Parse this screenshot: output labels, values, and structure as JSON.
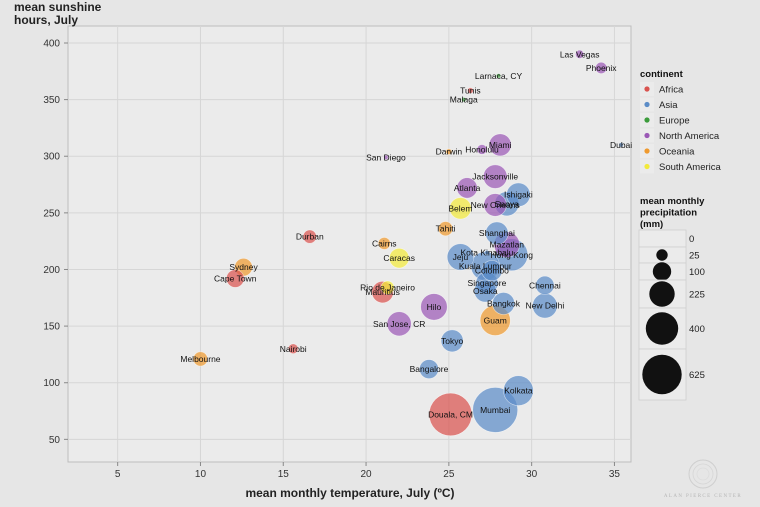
{
  "chart_data": {
    "type": "scatter",
    "xlabel": "mean monthly temperature, July (ºC)",
    "ylabel": "mean sunshine hours, July",
    "xlim": [
      2,
      36
    ],
    "ylim": [
      30,
      415
    ],
    "xticks": [
      "5",
      "10",
      "15",
      "20",
      "25",
      "30",
      "35"
    ],
    "yticks": [
      "50",
      "100",
      "150",
      "200",
      "250",
      "300",
      "350",
      "400"
    ],
    "grid": true,
    "legend_position": "right",
    "continent_legend": {
      "title": "continent",
      "entries": [
        {
          "name": "Africa",
          "color": "#d9534f"
        },
        {
          "name": "Asia",
          "color": "#5b8cc7"
        },
        {
          "name": "Europe",
          "color": "#3c9c3c"
        },
        {
          "name": "North America",
          "color": "#9b59b6"
        },
        {
          "name": "Oceania",
          "color": "#ef9a2f"
        },
        {
          "name": "South America",
          "color": "#f2ea3c"
        }
      ]
    },
    "size_legend": {
      "title": [
        "mean monthly",
        "precipitation",
        "(mm)"
      ],
      "values": [
        "0",
        "25",
        "100",
        "225",
        "400",
        "625"
      ]
    },
    "points": [
      {
        "name": "Las Vegas",
        "x": 32.9,
        "y": 390,
        "precip": 8,
        "continent": "North America"
      },
      {
        "name": "Larnaca, CY",
        "x": 28.0,
        "y": 371,
        "precip": 0,
        "continent": "Europe"
      },
      {
        "name": "Phoenix",
        "x": 34.2,
        "y": 378,
        "precip": 25,
        "continent": "North America"
      },
      {
        "name": "Tunis",
        "x": 26.3,
        "y": 358,
        "precip": 1,
        "continent": "Africa"
      },
      {
        "name": "Malaga",
        "x": 25.9,
        "y": 350,
        "precip": 0,
        "continent": "Europe"
      },
      {
        "name": "Dubai",
        "x": 35.4,
        "y": 310,
        "precip": 0,
        "continent": "Asia"
      },
      {
        "name": "Miami",
        "x": 28.1,
        "y": 310,
        "precip": 160,
        "continent": "North America"
      },
      {
        "name": "Darwin",
        "x": 25.0,
        "y": 304,
        "precip": 1,
        "continent": "Oceania"
      },
      {
        "name": "San Diego",
        "x": 21.2,
        "y": 299,
        "precip": 0,
        "continent": "North America"
      },
      {
        "name": "Honolulu",
        "x": 27.0,
        "y": 306,
        "precip": 15,
        "continent": "North America"
      },
      {
        "name": "Jacksonville",
        "x": 27.8,
        "y": 282,
        "precip": 190,
        "continent": "North America"
      },
      {
        "name": "Atlanta",
        "x": 26.1,
        "y": 272,
        "precip": 130,
        "continent": "North America"
      },
      {
        "name": "Ishigaki",
        "x": 29.2,
        "y": 266,
        "precip": 190,
        "continent": "Asia"
      },
      {
        "name": "Sanya",
        "x": 28.5,
        "y": 258,
        "precip": 200,
        "continent": "Asia"
      },
      {
        "name": "Belem",
        "x": 25.7,
        "y": 254,
        "precip": 150,
        "continent": "South America"
      },
      {
        "name": "New Orleans",
        "x": 27.8,
        "y": 257,
        "precip": 170,
        "continent": "North America"
      },
      {
        "name": "Tahiti",
        "x": 24.8,
        "y": 236,
        "precip": 50,
        "continent": "Oceania"
      },
      {
        "name": "Shanghai",
        "x": 27.9,
        "y": 232,
        "precip": 170,
        "continent": "Asia"
      },
      {
        "name": "Durban",
        "x": 16.6,
        "y": 229,
        "precip": 40,
        "continent": "Africa"
      },
      {
        "name": "Cairns",
        "x": 21.1,
        "y": 223,
        "precip": 30,
        "continent": "Oceania"
      },
      {
        "name": "Mazatlan",
        "x": 28.5,
        "y": 222,
        "precip": 230,
        "continent": "North America"
      },
      {
        "name": "Kota Kinabalu",
        "x": 27.3,
        "y": 215,
        "precip": 0,
        "continent": "Asia"
      },
      {
        "name": "Jeju",
        "x": 25.7,
        "y": 211,
        "precip": 250,
        "continent": "Asia"
      },
      {
        "name": "Hong Kong",
        "x": 28.8,
        "y": 213,
        "precip": 390,
        "continent": "Asia"
      },
      {
        "name": "Caracas",
        "x": 22.0,
        "y": 210,
        "precip": 120,
        "continent": "South America"
      },
      {
        "name": "Sydney",
        "x": 12.6,
        "y": 202,
        "precip": 90,
        "continent": "Oceania"
      },
      {
        "name": "Kuala Lumpur",
        "x": 27.2,
        "y": 203,
        "precip": 300,
        "continent": "Asia"
      },
      {
        "name": "Colombo",
        "x": 27.6,
        "y": 199,
        "precip": 130,
        "continent": "Asia"
      },
      {
        "name": "Cape Town",
        "x": 12.1,
        "y": 192,
        "precip": 90,
        "continent": "Africa"
      },
      {
        "name": "Singapore",
        "x": 27.3,
        "y": 188,
        "precip": 160,
        "continent": "Asia"
      },
      {
        "name": "Chennai",
        "x": 30.8,
        "y": 186,
        "precip": 100,
        "continent": "Asia"
      },
      {
        "name": "Rio de Janeiro",
        "x": 21.3,
        "y": 184,
        "precip": 40,
        "continent": "South America"
      },
      {
        "name": "Mauritius",
        "x": 21.0,
        "y": 180,
        "precip": 150,
        "continent": "Africa"
      },
      {
        "name": "Osaka",
        "x": 27.2,
        "y": 181,
        "precip": 160,
        "continent": "Asia"
      },
      {
        "name": "Bangkok",
        "x": 28.3,
        "y": 170,
        "precip": 160,
        "continent": "Asia"
      },
      {
        "name": "New Delhi",
        "x": 30.8,
        "y": 168,
        "precip": 210,
        "continent": "Asia"
      },
      {
        "name": "Hilo",
        "x": 24.1,
        "y": 167,
        "precip": 250,
        "continent": "North America"
      },
      {
        "name": "Guam",
        "x": 27.8,
        "y": 155,
        "precip": 340,
        "continent": "Oceania"
      },
      {
        "name": "San Jose, CR",
        "x": 22.0,
        "y": 152,
        "precip": 200,
        "continent": "North America"
      },
      {
        "name": "Tokyo",
        "x": 25.2,
        "y": 137,
        "precip": 160,
        "continent": "Asia"
      },
      {
        "name": "Nairobi",
        "x": 15.6,
        "y": 130,
        "precip": 15,
        "continent": "Africa"
      },
      {
        "name": "Melbourne",
        "x": 10.0,
        "y": 121,
        "precip": 50,
        "continent": "Oceania"
      },
      {
        "name": "Bangalore",
        "x": 23.8,
        "y": 112,
        "precip": 110,
        "continent": "Asia"
      },
      {
        "name": "Kolkata",
        "x": 29.2,
        "y": 93,
        "precip": 330,
        "continent": "Asia"
      },
      {
        "name": "Douala, CM",
        "x": 25.1,
        "y": 72,
        "precip": 750,
        "continent": "Africa"
      },
      {
        "name": "Mumbai",
        "x": 27.8,
        "y": 76,
        "precip": 840,
        "continent": "Asia"
      }
    ]
  },
  "watermark": "ALAN PIERCE CENTER"
}
